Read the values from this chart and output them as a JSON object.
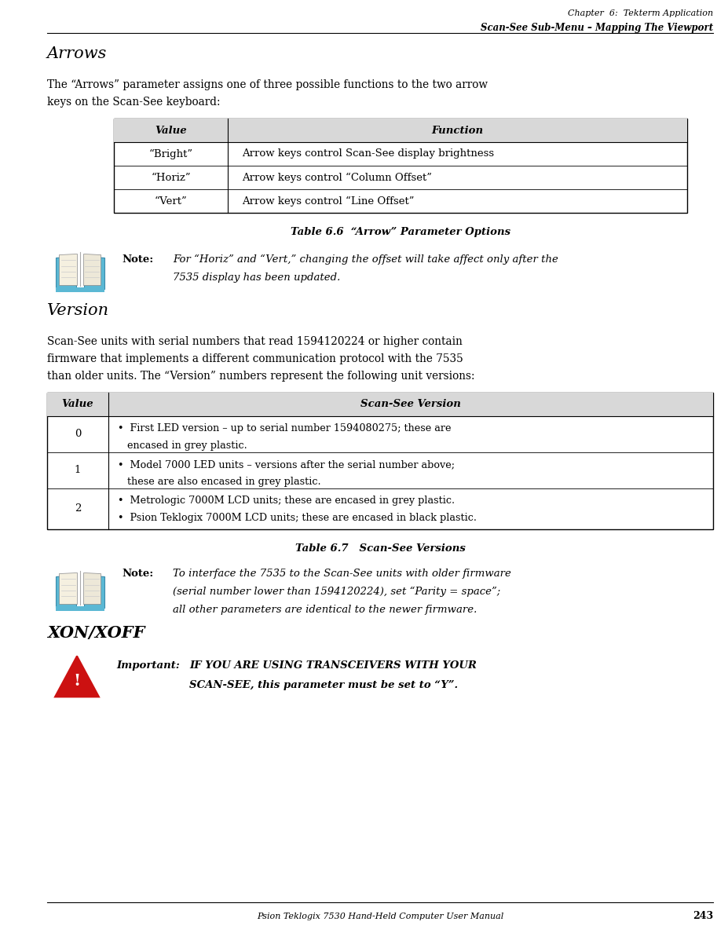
{
  "page_width": 9.28,
  "page_height": 11.97,
  "bg_color": "#ffffff",
  "header_line1": "Chapter  6:  Tekterm Application",
  "header_line2": "Scan-See Sub-Menu – Mapping The Viewport",
  "footer_text": "Psion Teklogix 7530 Hand-Held Computer User Manual",
  "footer_page": "243",
  "section1_title": "Arrows",
  "section1_body1": "The “Arrows” parameter assigns one of three possible functions to the two arrow",
  "section1_body2": "keys on the Scan-See keyboard:",
  "table1_caption": "Table 6.6  “Arrow” Parameter Options",
  "table1_header": [
    "Value",
    "Function"
  ],
  "table1_rows": [
    [
      "“Bright”",
      "Arrow keys control Scan-See display brightness"
    ],
    [
      "“Horiz”",
      "Arrow keys control “Column Offset”"
    ],
    [
      "“Vert”",
      "Arrow keys control “Line Offset”"
    ]
  ],
  "note1_label": "Note:",
  "note1_line1": "For “Horiz” and “Vert,” changing the offset will take affect only after the",
  "note1_line2": "7535 display has been updated.",
  "section2_title": "Version",
  "section2_body1": "Scan-See units with serial numbers that read 1594120224 or higher contain",
  "section2_body2": "firmware that implements a different communication protocol with the 7535",
  "section2_body3": "than older units. The “Version” numbers represent the following unit versions:",
  "table2_caption": "Table 6.7   Scan-See Versions",
  "table2_header": [
    "Value",
    "Scan-See Version"
  ],
  "table2_rows_col0": [
    "0",
    "1",
    "2"
  ],
  "table2_rows_col1": [
    [
      "•  First LED version – up to serial number 1594080275; these are",
      "   encased in grey plastic."
    ],
    [
      "•  Model 7000 LED units – versions after the serial number above;",
      "   these are also encased in grey plastic."
    ],
    [
      "•  Metrologic 7000M LCD units; these are encased in grey plastic.",
      "•  Psion Teklogix 7000M LCD units; these are encased in black plastic."
    ]
  ],
  "note2_label": "Note:",
  "note2_line1": "To interface the 7535 to the Scan-See units with older firmware",
  "note2_line2": "(serial number lower than 1594120224), set “Parity = space”;",
  "note2_line3": "all other parameters are identical to the newer firmware.",
  "section3_title": "XON/XOFF",
  "important_label": "Important:",
  "important_line1": "IF YOU ARE USING TRANSCEIVERS WITH YOUR",
  "important_line2": "SCAN-SEE, this parameter must be set to “Y”."
}
